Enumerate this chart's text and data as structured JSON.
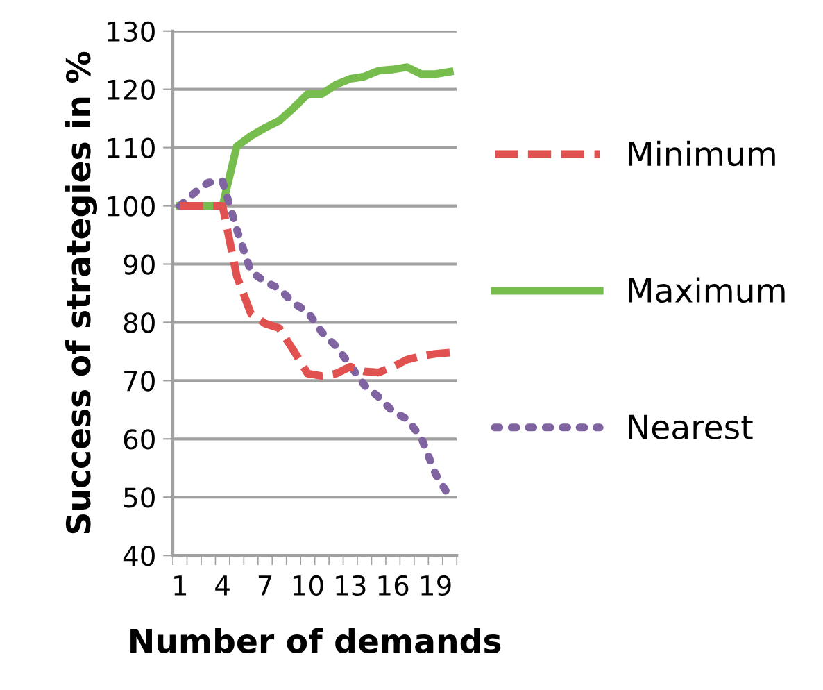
{
  "chart_data": {
    "type": "line",
    "xlabel": "Number of demands",
    "ylabel": "Success of strategies in %",
    "categories": [
      "1",
      null,
      null,
      "4",
      null,
      null,
      "7",
      null,
      null,
      "10",
      null,
      null,
      "13",
      null,
      null,
      "16",
      null,
      null,
      "19",
      null
    ],
    "series": [
      {
        "name": "Minimum",
        "color": "#e0514f",
        "line_style": "dashed",
        "values": [
          100,
          100,
          100,
          100,
          88,
          81.5,
          79.8,
          79,
          75.2,
          71.2,
          70.8,
          71.2,
          72.4,
          71.6,
          71.4,
          72.4,
          73.6,
          74.2,
          74.6,
          74.8
        ]
      },
      {
        "name": "Maximum",
        "color": "#77bd4d",
        "line_style": "solid",
        "values": [
          100,
          100,
          100,
          100,
          110.2,
          112,
          113.4,
          114.6,
          116.8,
          119.2,
          119.2,
          120.8,
          121.8,
          122.2,
          123.2,
          123.4,
          123.8,
          122.6,
          122.6,
          123
        ]
      },
      {
        "name": "Nearest",
        "color": "#8064a2",
        "line_style": "dotted",
        "values": [
          100,
          102.2,
          104,
          104.2,
          96,
          88.7,
          87,
          85.8,
          83.3,
          81.8,
          78.3,
          75.9,
          72.6,
          69.2,
          67.2,
          64.7,
          63.4,
          60.2,
          54,
          50
        ]
      }
    ],
    "ylim": [
      40,
      130
    ],
    "yticks": [
      40,
      50,
      60,
      70,
      80,
      90,
      100,
      110,
      120,
      130
    ],
    "grid": "y",
    "legend": "right"
  }
}
